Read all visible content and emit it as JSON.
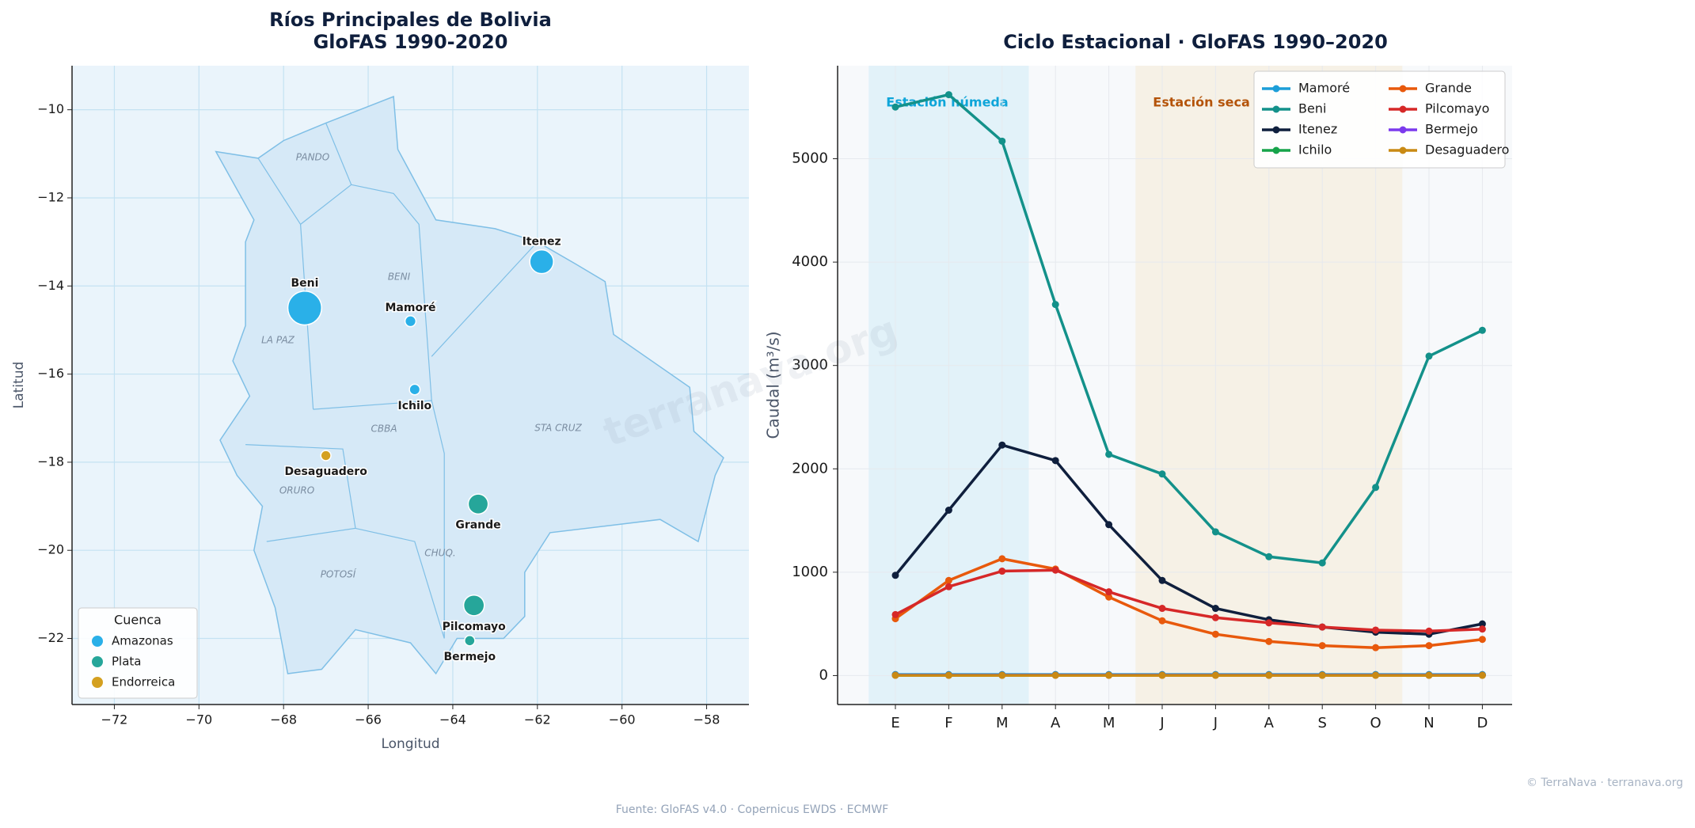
{
  "chart_data": [
    {
      "type": "scatter",
      "title": "Ríos Principales de Bolivia",
      "subtitle": "GloFAS 1990-2020",
      "xlabel": "Longitud",
      "ylabel": "Latitud",
      "xlim": [
        -73,
        -57
      ],
      "ylim": [
        -23.5,
        -9
      ],
      "xticks": [
        {
          "value": -72,
          "label": "−72"
        },
        {
          "value": -70,
          "label": "−70"
        },
        {
          "value": -68,
          "label": "−68"
        },
        {
          "value": -66,
          "label": "−66"
        },
        {
          "value": -64,
          "label": "−64"
        },
        {
          "value": -62,
          "label": "−62"
        },
        {
          "value": -60,
          "label": "−60"
        },
        {
          "value": -58,
          "label": "−58"
        }
      ],
      "yticks": [
        {
          "value": -22,
          "label": "−22"
        },
        {
          "value": -20,
          "label": "−20"
        },
        {
          "value": -18,
          "label": "−18"
        },
        {
          "value": -16,
          "label": "−16"
        },
        {
          "value": -14,
          "label": "−14"
        },
        {
          "value": -12,
          "label": "−12"
        },
        {
          "value": -10,
          "label": "−10"
        }
      ],
      "grid": true,
      "legend": "lower left",
      "legend_title": "Cuenca",
      "groups": [
        {
          "name": "Amazonas",
          "color": "#2ab0e8"
        },
        {
          "name": "Plata",
          "color": "#26a69a"
        },
        {
          "name": "Endorreica",
          "color": "#d4a020"
        }
      ],
      "regions": [
        "PANDO",
        "BENI",
        "LA PAZ",
        "CBBA",
        "STA CRUZ",
        "ORURO",
        "POTOSÍ",
        "CHUQ."
      ],
      "points": {
        "names": [
          "Beni",
          "Mamoré",
          "Itenez",
          "Ichilo",
          "Desaguadero",
          "Grande",
          "Pilcomayo",
          "Bermejo"
        ],
        "x": [
          -67.5,
          -65.0,
          -61.9,
          -64.9,
          -67.0,
          -63.4,
          -63.5,
          -63.6
        ],
        "y": [
          -14.5,
          -14.8,
          -13.45,
          -16.35,
          -17.85,
          -18.95,
          -21.25,
          -22.05
        ],
        "sizes": [
          3000,
          10,
          1030,
          6,
          2,
          560,
          640,
          4
        ],
        "basin": [
          "Amazonas",
          "Amazonas",
          "Amazonas",
          "Amazonas",
          "Endorreica",
          "Plata",
          "Plata",
          "Plata"
        ]
      }
    },
    {
      "type": "line",
      "title": "Ciclo Estacional · GloFAS 1990–2020",
      "ylabel": "Caudal (m³/s)",
      "categories": [
        "E",
        "F",
        "M",
        "A",
        "M",
        "J",
        "J",
        "A",
        "S",
        "O",
        "N",
        "D"
      ],
      "ylim": [
        -280,
        5900
      ],
      "yticks": [
        0,
        1000,
        2000,
        3000,
        4000,
        5000
      ],
      "grid": true,
      "legend": "upper right",
      "watermark": "terranava.org",
      "bands": [
        {
          "label": "Estación húmeda",
          "span": [
            0,
            2
          ],
          "color": "#e2f2f9",
          "text_color": "#0ea5d9"
        },
        {
          "label": "Estación seca",
          "span": [
            5,
            9
          ],
          "color": "#f6f1e6",
          "text_color": "#b45309"
        }
      ],
      "series": [
        {
          "name": "Mamoré",
          "color": "#1c9ed8",
          "values": [
            10,
            10,
            10,
            10,
            10,
            10,
            10,
            10,
            10,
            10,
            10,
            10
          ]
        },
        {
          "name": "Beni",
          "color": "#13918a",
          "values": [
            5500,
            5620,
            5170,
            3590,
            2140,
            1950,
            1390,
            1150,
            1090,
            1820,
            3090,
            3340
          ]
        },
        {
          "name": "Itenez",
          "color": "#0f1f3d",
          "values": [
            970,
            1600,
            2230,
            2080,
            1460,
            920,
            650,
            540,
            470,
            420,
            400,
            500
          ]
        },
        {
          "name": "Ichilo",
          "color": "#16a34a",
          "values": [
            6,
            6,
            6,
            6,
            6,
            6,
            6,
            6,
            6,
            6,
            6,
            6
          ]
        },
        {
          "name": "Grande",
          "color": "#e8590c",
          "values": [
            550,
            920,
            1130,
            1030,
            760,
            530,
            400,
            330,
            290,
            270,
            290,
            350
          ]
        },
        {
          "name": "Pilcomayo",
          "color": "#d62828",
          "values": [
            590,
            860,
            1010,
            1020,
            810,
            650,
            560,
            510,
            470,
            440,
            430,
            450
          ]
        },
        {
          "name": "Bermejo",
          "color": "#7c3aed",
          "values": [
            4,
            4,
            4,
            4,
            4,
            4,
            4,
            4,
            4,
            4,
            4,
            4
          ]
        },
        {
          "name": "Desaguadero",
          "color": "#c98a14",
          "values": [
            2,
            2,
            2,
            2,
            2,
            2,
            2,
            2,
            2,
            2,
            2,
            2
          ]
        }
      ]
    }
  ],
  "footer": {
    "source": "Fuente: GloFAS v4.0 · Copernicus EWDS · ECMWF",
    "credit": "© TerraNava · terranava.org"
  }
}
